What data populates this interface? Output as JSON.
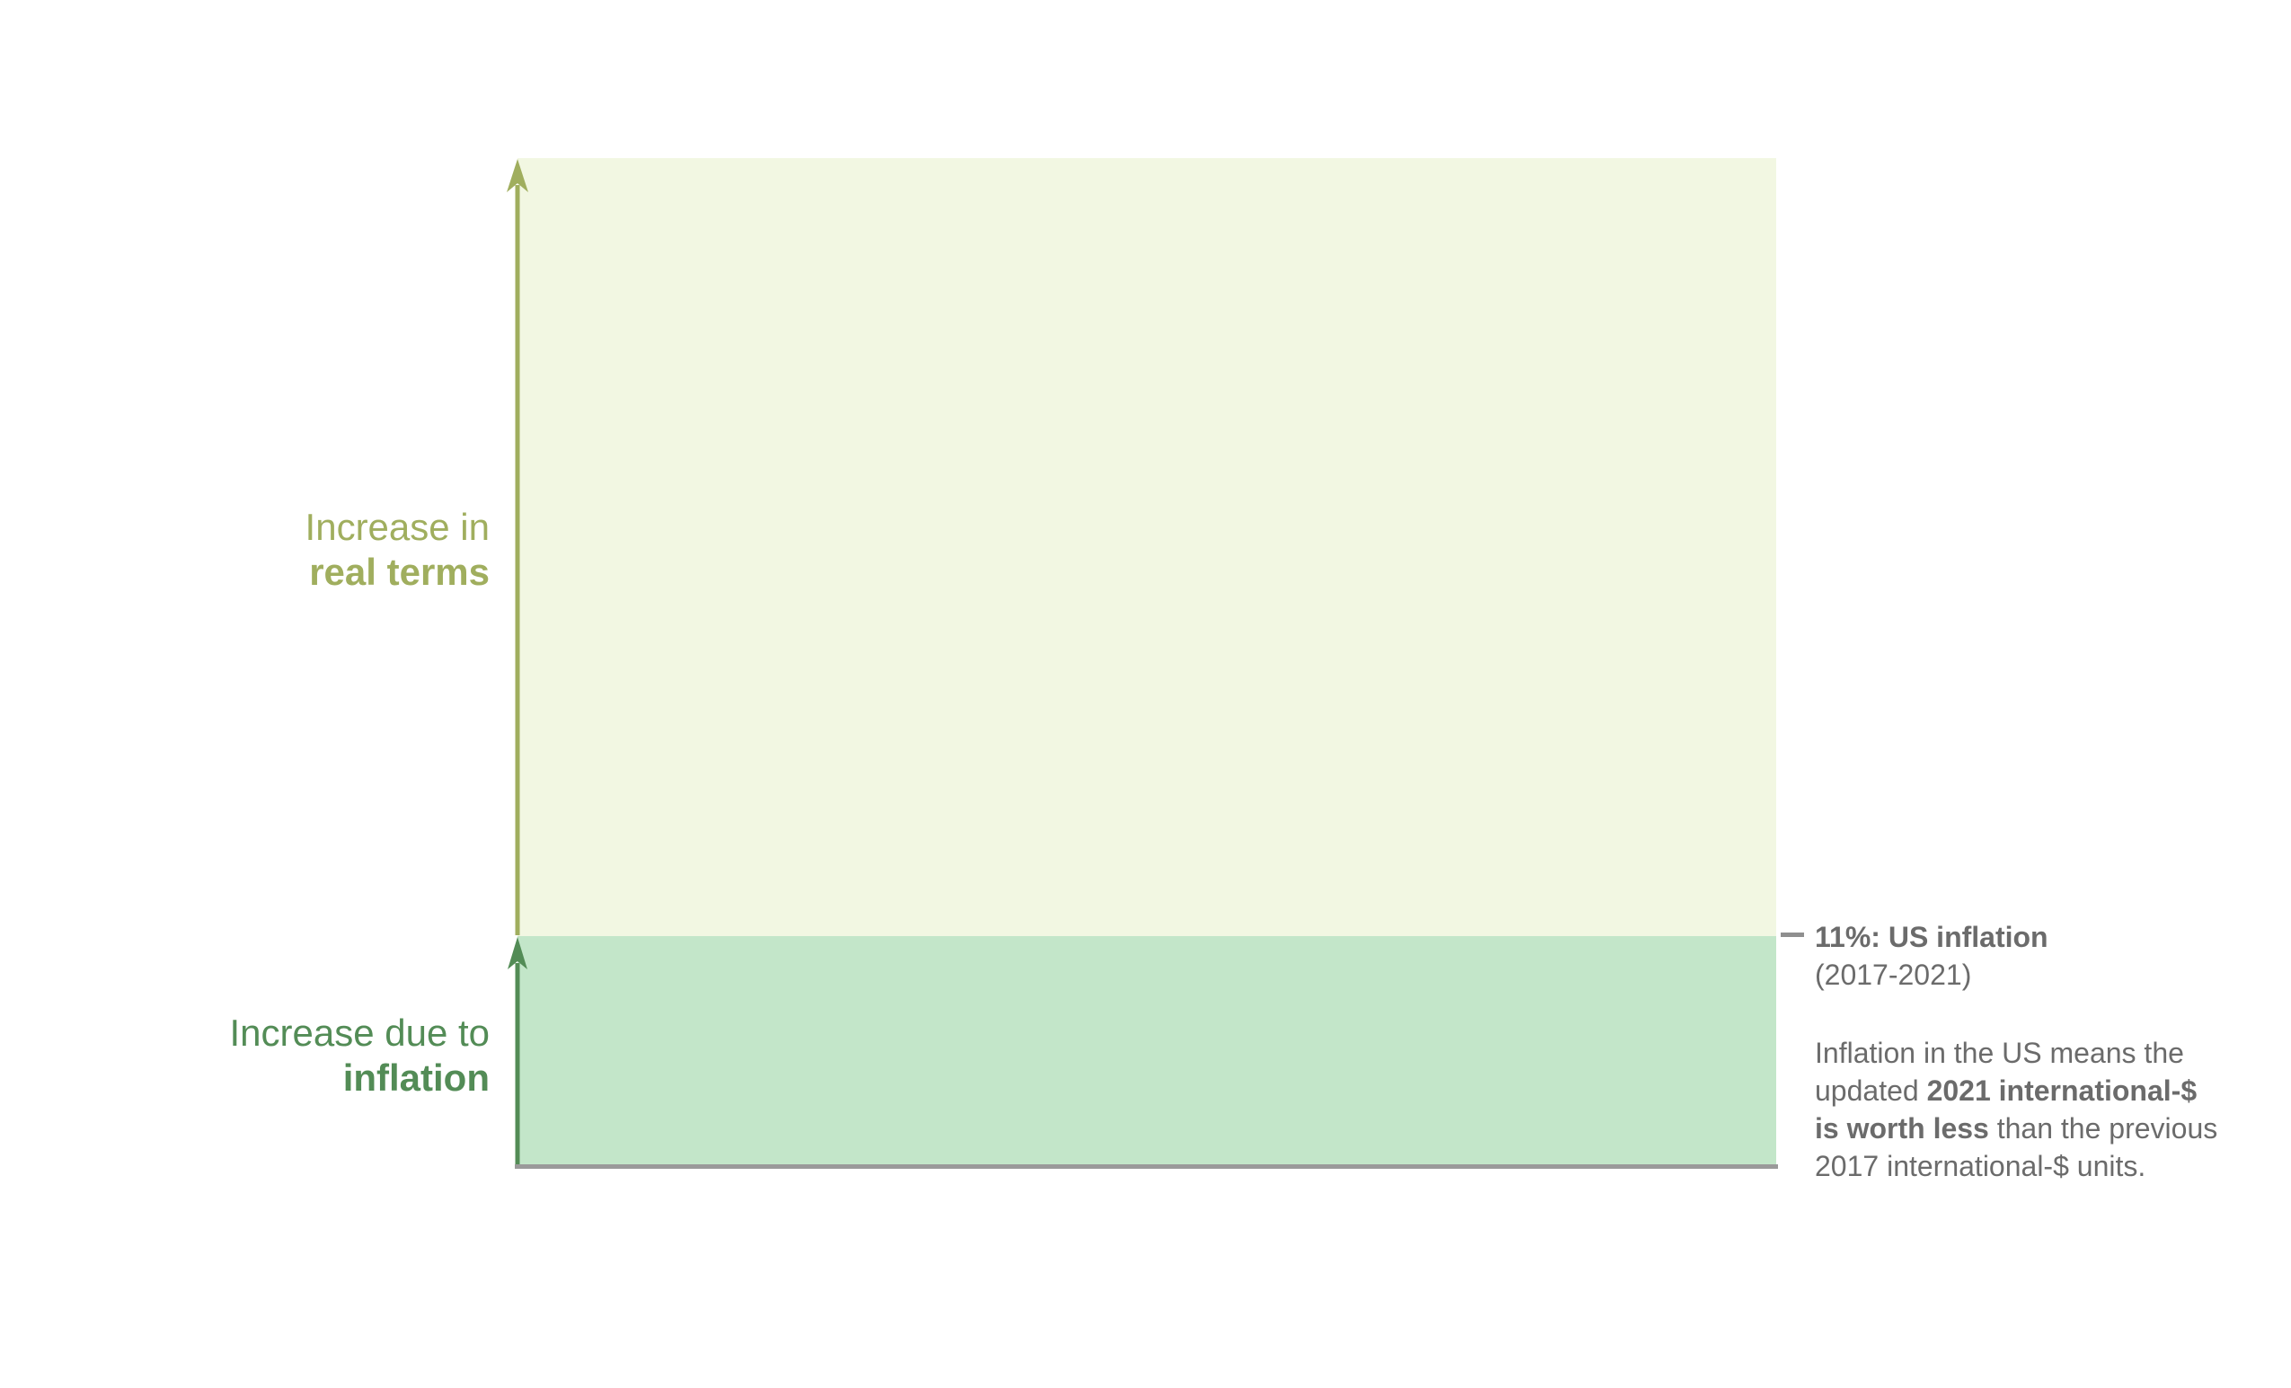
{
  "colors": {
    "real_area_fill": "#f2f7e2",
    "real_accent": "#a0ae5e",
    "inflation_area_fill": "#c3e6c9",
    "inflation_accent": "#538c56",
    "annotation_text": "#6b6b6b",
    "baseline": "#9a9a9a",
    "tick": "#8f8f8f"
  },
  "left_labels": {
    "real": [
      [
        {
          "t": "Increase in"
        }
      ],
      [
        {
          "t": "real terms",
          "b": true
        }
      ]
    ],
    "inflation": [
      [
        {
          "t": "Increase due to"
        }
      ],
      [
        {
          "t": "inflation",
          "b": true
        }
      ]
    ]
  },
  "annotation": {
    "heading": [
      [
        {
          "t": "11%: US inflation",
          "b": true
        }
      ],
      [
        {
          "t": "(2017-2021)"
        }
      ]
    ],
    "body": [
      [
        {
          "t": "Inflation in the US means the"
        }
      ],
      [
        {
          "t": "updated "
        },
        {
          "t": "2021 international-$",
          "b": true
        }
      ],
      [
        {
          "t": "is worth less",
          "b": true
        },
        {
          "t": " than the previous"
        }
      ],
      [
        {
          "t": "2017 international-$ units."
        }
      ]
    ]
  },
  "icons": {
    "real_axis_arrow": "up-arrow",
    "inflation_axis_arrow": "up-arrow"
  }
}
